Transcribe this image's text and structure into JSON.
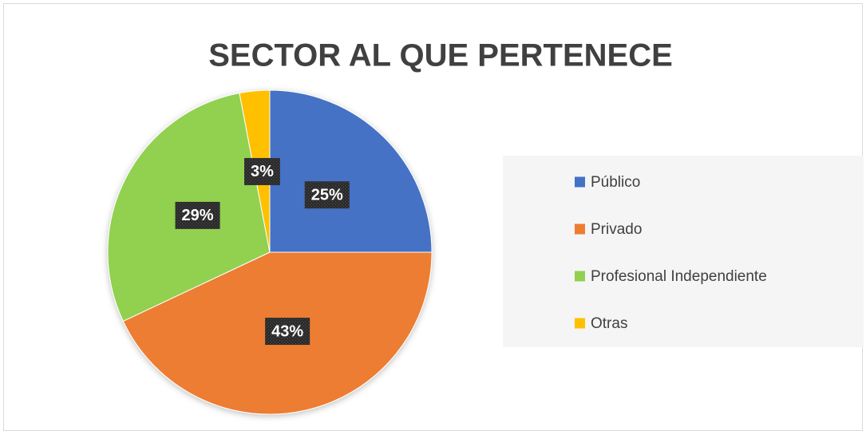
{
  "chart_data": {
    "type": "pie",
    "title": "SECTOR AL QUE PERTENECE",
    "categories": [
      "Público",
      "Privado",
      "Profesional Independiente",
      "Otras"
    ],
    "values": [
      25,
      43,
      29,
      3
    ],
    "value_labels": [
      "25%",
      "43%",
      "29%",
      "3%"
    ],
    "colors": [
      "#4472c4",
      "#ed7d31",
      "#92d050",
      "#ffc000"
    ],
    "legend": "right"
  }
}
